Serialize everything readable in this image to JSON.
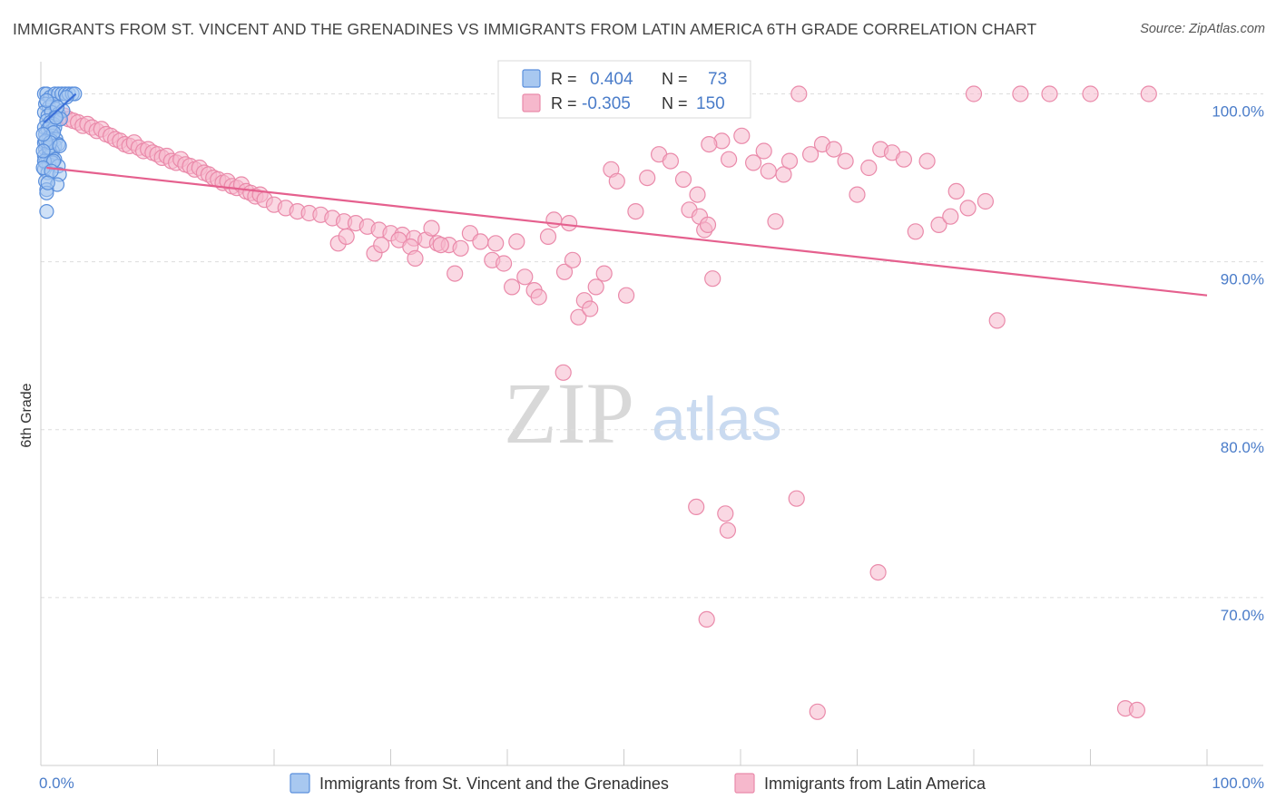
{
  "title": "IMMIGRANTS FROM ST. VINCENT AND THE GRENADINES VS IMMIGRANTS FROM LATIN AMERICA 6TH GRADE CORRELATION CHART",
  "source": "Source: ZipAtlas.com",
  "watermark": {
    "zip": "ZIP",
    "atlas": "atlas"
  },
  "chart_data": {
    "type": "scatter",
    "xlabel": "",
    "ylabel": "6th Grade",
    "xlim": [
      0,
      100
    ],
    "ylim": [
      60,
      103
    ],
    "x_tick_labels": [
      "0.0%",
      "100.0%"
    ],
    "y_ticks": [
      70,
      80,
      90,
      100
    ],
    "y_tick_labels": [
      "70.0%",
      "80.0%",
      "90.0%",
      "100.0%"
    ],
    "grid": "horizontal dashed",
    "legend_position": "bottom",
    "stats_box_position": "top-center",
    "colors": {
      "blue_fill": "#a8c8f0",
      "blue_stroke": "#5a8fdc",
      "blue_line": "#3a6fd8",
      "pink_fill": "#f6b8cc",
      "pink_stroke": "#ea8aaa",
      "pink_line": "#e5608e",
      "tick_text": "#4a7cc9"
    },
    "stats": [
      {
        "r_label": "R =",
        "r": "0.404",
        "n_label": "N =",
        "n": "73"
      },
      {
        "r_label": "R =",
        "r": "-0.305",
        "n_label": "N =",
        "n": "150"
      }
    ],
    "series": [
      {
        "name": "Immigrants from St. Vincent and the Grenadines",
        "color": "#a8c8f0",
        "trend": {
          "x": [
            0.3,
            3.0
          ],
          "y": [
            98.3,
            100.0
          ]
        },
        "points": [
          [
            0.3,
            100
          ],
          [
            0.5,
            100
          ],
          [
            0.8,
            99.8
          ],
          [
            1.2,
            100
          ],
          [
            1.5,
            100
          ],
          [
            1.8,
            100
          ],
          [
            2.1,
            100
          ],
          [
            2.4,
            100
          ],
          [
            2.7,
            100
          ],
          [
            2.9,
            100
          ],
          [
            0.4,
            99.4
          ],
          [
            0.7,
            99.2
          ],
          [
            1.0,
            99.4
          ],
          [
            1.3,
            99.1
          ],
          [
            0.3,
            98.9
          ],
          [
            0.6,
            98.7
          ],
          [
            0.9,
            98.9
          ],
          [
            1.2,
            98.6
          ],
          [
            1.5,
            98.8
          ],
          [
            0.5,
            98.4
          ],
          [
            0.8,
            98.3
          ],
          [
            1.1,
            98.2
          ],
          [
            0.3,
            98.0
          ],
          [
            0.6,
            97.9
          ],
          [
            0.9,
            97.8
          ],
          [
            1.2,
            98.0
          ],
          [
            0.4,
            97.6
          ],
          [
            0.7,
            97.4
          ],
          [
            1.0,
            97.5
          ],
          [
            1.3,
            97.3
          ],
          [
            0.3,
            97.1
          ],
          [
            0.6,
            97.0
          ],
          [
            0.9,
            97.2
          ],
          [
            1.2,
            96.9
          ],
          [
            1.5,
            97.0
          ],
          [
            0.4,
            96.7
          ],
          [
            0.7,
            96.5
          ],
          [
            1.0,
            96.6
          ],
          [
            0.3,
            96.3
          ],
          [
            0.6,
            96.2
          ],
          [
            0.9,
            96.4
          ],
          [
            1.2,
            96.1
          ],
          [
            0.4,
            95.9
          ],
          [
            0.7,
            95.8
          ],
          [
            1.0,
            95.9
          ],
          [
            1.5,
            95.7
          ],
          [
            0.3,
            95.5
          ],
          [
            0.6,
            95.3
          ],
          [
            1.6,
            95.2
          ],
          [
            0.4,
            94.8
          ],
          [
            1.4,
            94.6
          ],
          [
            0.5,
            94.3
          ],
          [
            0.5,
            94.1
          ],
          [
            0.5,
            93.0
          ],
          [
            0.8,
            98.1
          ],
          [
            1.1,
            97.7
          ],
          [
            0.5,
            99.6
          ],
          [
            1.9,
            99.0
          ],
          [
            0.3,
            96.0
          ],
          [
            0.7,
            96.8
          ],
          [
            1.1,
            96.0
          ],
          [
            0.4,
            97.2
          ],
          [
            0.8,
            97.1
          ],
          [
            1.4,
            99.2
          ],
          [
            1.7,
            98.5
          ],
          [
            0.2,
            97.6
          ],
          [
            0.2,
            96.6
          ],
          [
            0.2,
            95.6
          ],
          [
            0.9,
            95.4
          ],
          [
            0.6,
            94.7
          ],
          [
            1.3,
            98.6
          ],
          [
            2.2,
            99.8
          ],
          [
            1.6,
            96.9
          ]
        ]
      },
      {
        "name": "Immigrants from Latin America",
        "color": "#f6b8cc",
        "trend": {
          "x": [
            0.5,
            100.0
          ],
          "y": [
            95.6,
            88.0
          ]
        },
        "points": [
          [
            1.2,
            98.8
          ],
          [
            1.6,
            98.6
          ],
          [
            2.0,
            98.7
          ],
          [
            2.4,
            98.5
          ],
          [
            2.8,
            98.4
          ],
          [
            3.2,
            98.3
          ],
          [
            3.6,
            98.1
          ],
          [
            4.0,
            98.2
          ],
          [
            4.4,
            98.0
          ],
          [
            4.8,
            97.8
          ],
          [
            5.2,
            97.9
          ],
          [
            5.6,
            97.6
          ],
          [
            6.0,
            97.5
          ],
          [
            6.4,
            97.3
          ],
          [
            6.8,
            97.2
          ],
          [
            7.2,
            97.0
          ],
          [
            7.6,
            96.9
          ],
          [
            8.0,
            97.1
          ],
          [
            8.4,
            96.8
          ],
          [
            8.8,
            96.6
          ],
          [
            9.2,
            96.7
          ],
          [
            9.6,
            96.5
          ],
          [
            10.0,
            96.4
          ],
          [
            10.4,
            96.2
          ],
          [
            10.8,
            96.3
          ],
          [
            11.2,
            96.0
          ],
          [
            11.6,
            95.9
          ],
          [
            12.0,
            96.1
          ],
          [
            12.4,
            95.8
          ],
          [
            12.8,
            95.7
          ],
          [
            13.2,
            95.5
          ],
          [
            13.6,
            95.6
          ],
          [
            14.0,
            95.3
          ],
          [
            14.4,
            95.2
          ],
          [
            14.8,
            95.0
          ],
          [
            15.2,
            94.9
          ],
          [
            15.6,
            94.7
          ],
          [
            16.0,
            94.8
          ],
          [
            16.4,
            94.5
          ],
          [
            16.8,
            94.4
          ],
          [
            17.2,
            94.6
          ],
          [
            17.6,
            94.2
          ],
          [
            18.0,
            94.1
          ],
          [
            18.4,
            93.9
          ],
          [
            18.8,
            94.0
          ],
          [
            19.2,
            93.7
          ],
          [
            20.0,
            93.4
          ],
          [
            21.0,
            93.2
          ],
          [
            22.0,
            93.0
          ],
          [
            23.0,
            92.9
          ],
          [
            24.0,
            92.8
          ],
          [
            25.0,
            92.6
          ],
          [
            26.0,
            92.4
          ],
          [
            27.0,
            92.3
          ],
          [
            28.0,
            92.1
          ],
          [
            29.0,
            91.9
          ],
          [
            30.0,
            91.7
          ],
          [
            31.0,
            91.6
          ],
          [
            32.0,
            91.4
          ],
          [
            33.0,
            91.3
          ],
          [
            34.0,
            91.1
          ],
          [
            35.0,
            91.0
          ],
          [
            36.0,
            90.8
          ],
          [
            25.5,
            91.1
          ],
          [
            26.2,
            91.5
          ],
          [
            28.6,
            90.5
          ],
          [
            29.2,
            91.0
          ],
          [
            30.7,
            91.3
          ],
          [
            31.7,
            90.9
          ],
          [
            32.1,
            90.2
          ],
          [
            33.5,
            92.0
          ],
          [
            34.3,
            91.0
          ],
          [
            35.5,
            89.3
          ],
          [
            36.8,
            91.7
          ],
          [
            37.7,
            91.2
          ],
          [
            38.7,
            90.1
          ],
          [
            39.0,
            91.1
          ],
          [
            39.7,
            89.9
          ],
          [
            40.4,
            88.5
          ],
          [
            40.8,
            91.2
          ],
          [
            41.5,
            89.1
          ],
          [
            42.3,
            88.3
          ],
          [
            42.7,
            87.9
          ],
          [
            43.5,
            91.5
          ],
          [
            44.0,
            92.5
          ],
          [
            44.9,
            89.4
          ],
          [
            45.3,
            92.3
          ],
          [
            45.6,
            90.1
          ],
          [
            46.1,
            86.7
          ],
          [
            46.6,
            87.7
          ],
          [
            47.1,
            87.2
          ],
          [
            47.6,
            88.5
          ],
          [
            48.3,
            89.3
          ],
          [
            48.9,
            95.5
          ],
          [
            49.4,
            94.8
          ],
          [
            50.2,
            88.0
          ],
          [
            51.0,
            93.0
          ],
          [
            52.0,
            95.0
          ],
          [
            53.0,
            96.4
          ],
          [
            54.0,
            96.0
          ],
          [
            55.1,
            94.9
          ],
          [
            55.6,
            93.1
          ],
          [
            56.3,
            94.0
          ],
          [
            56.5,
            92.7
          ],
          [
            56.9,
            91.9
          ],
          [
            57.2,
            92.2
          ],
          [
            57.6,
            89.0
          ],
          [
            58.4,
            97.2
          ],
          [
            59.0,
            96.1
          ],
          [
            60.1,
            97.5
          ],
          [
            61.1,
            95.9
          ],
          [
            62.0,
            96.6
          ],
          [
            62.4,
            95.4
          ],
          [
            63.0,
            92.4
          ],
          [
            63.7,
            95.2
          ],
          [
            64.2,
            96.0
          ],
          [
            65.0,
            100.0
          ],
          [
            66.0,
            96.4
          ],
          [
            67.0,
            97.0
          ],
          [
            68.0,
            96.7
          ],
          [
            69.0,
            96.0
          ],
          [
            70.0,
            94.0
          ],
          [
            71.0,
            95.6
          ],
          [
            72.0,
            96.7
          ],
          [
            73.0,
            96.5
          ],
          [
            74.0,
            96.1
          ],
          [
            75.0,
            91.8
          ],
          [
            76.0,
            96.0
          ],
          [
            77.0,
            92.2
          ],
          [
            78.0,
            92.7
          ],
          [
            78.5,
            94.2
          ],
          [
            79.5,
            93.2
          ],
          [
            80.0,
            100.0
          ],
          [
            81.0,
            93.6
          ],
          [
            82.0,
            86.5
          ],
          [
            84.0,
            100.0
          ],
          [
            86.5,
            100.0
          ],
          [
            90.0,
            100.0
          ],
          [
            93.0,
            63.4
          ],
          [
            94.0,
            63.3
          ],
          [
            95.0,
            100.0
          ],
          [
            71.8,
            71.5
          ],
          [
            56.2,
            75.4
          ],
          [
            58.7,
            75.0
          ],
          [
            58.9,
            74.0
          ],
          [
            64.8,
            75.9
          ],
          [
            57.1,
            68.7
          ],
          [
            66.6,
            63.2
          ],
          [
            44.8,
            83.4
          ],
          [
            57.3,
            97.0
          ]
        ]
      }
    ]
  },
  "legend": [
    {
      "label": "Immigrants from St. Vincent and the Grenadines",
      "color": "#a8c8f0",
      "stroke": "#5a8fdc"
    },
    {
      "label": "Immigrants from Latin America",
      "color": "#f6b8cc",
      "stroke": "#ea8aaa"
    }
  ]
}
